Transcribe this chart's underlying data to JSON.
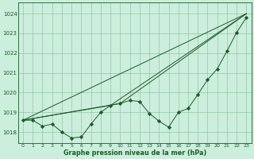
{
  "title": "Graphe pression niveau de la mer (hPa)",
  "bg_color": "#cceedd",
  "plot_bg_color": "#cceedd",
  "grid_color": "#88bb99",
  "line_color": "#1a5c28",
  "marker_color": "#1a5c28",
  "xlim": [
    -0.5,
    23.5
  ],
  "ylim": [
    1017.45,
    1024.55
  ],
  "yticks": [
    1018,
    1019,
    1020,
    1021,
    1022,
    1023,
    1024
  ],
  "xticks": [
    0,
    1,
    2,
    3,
    4,
    5,
    6,
    7,
    8,
    9,
    10,
    11,
    12,
    13,
    14,
    15,
    16,
    17,
    18,
    19,
    20,
    21,
    22,
    23
  ],
  "series_main": {
    "x": [
      0,
      1,
      2,
      3,
      4,
      5,
      6,
      7,
      8,
      9,
      10,
      11,
      12,
      13,
      14,
      15,
      16,
      17,
      18,
      19,
      20,
      21,
      22,
      23
    ],
    "y": [
      1018.6,
      1018.6,
      1018.3,
      1018.4,
      1018.0,
      1017.7,
      1017.75,
      1018.4,
      1019.0,
      1019.35,
      1019.45,
      1019.6,
      1019.55,
      1018.95,
      1018.55,
      1018.25,
      1019.0,
      1019.2,
      1019.9,
      1020.65,
      1021.2,
      1022.1,
      1023.05,
      1023.8
    ]
  },
  "series_line1": {
    "x": [
      0,
      23
    ],
    "y": [
      1018.6,
      1024.0
    ]
  },
  "series_line2": {
    "x": [
      0,
      9,
      23
    ],
    "y": [
      1018.6,
      1019.35,
      1024.0
    ]
  },
  "series_line3": {
    "x": [
      0,
      10,
      23
    ],
    "y": [
      1018.6,
      1019.45,
      1024.0
    ]
  }
}
